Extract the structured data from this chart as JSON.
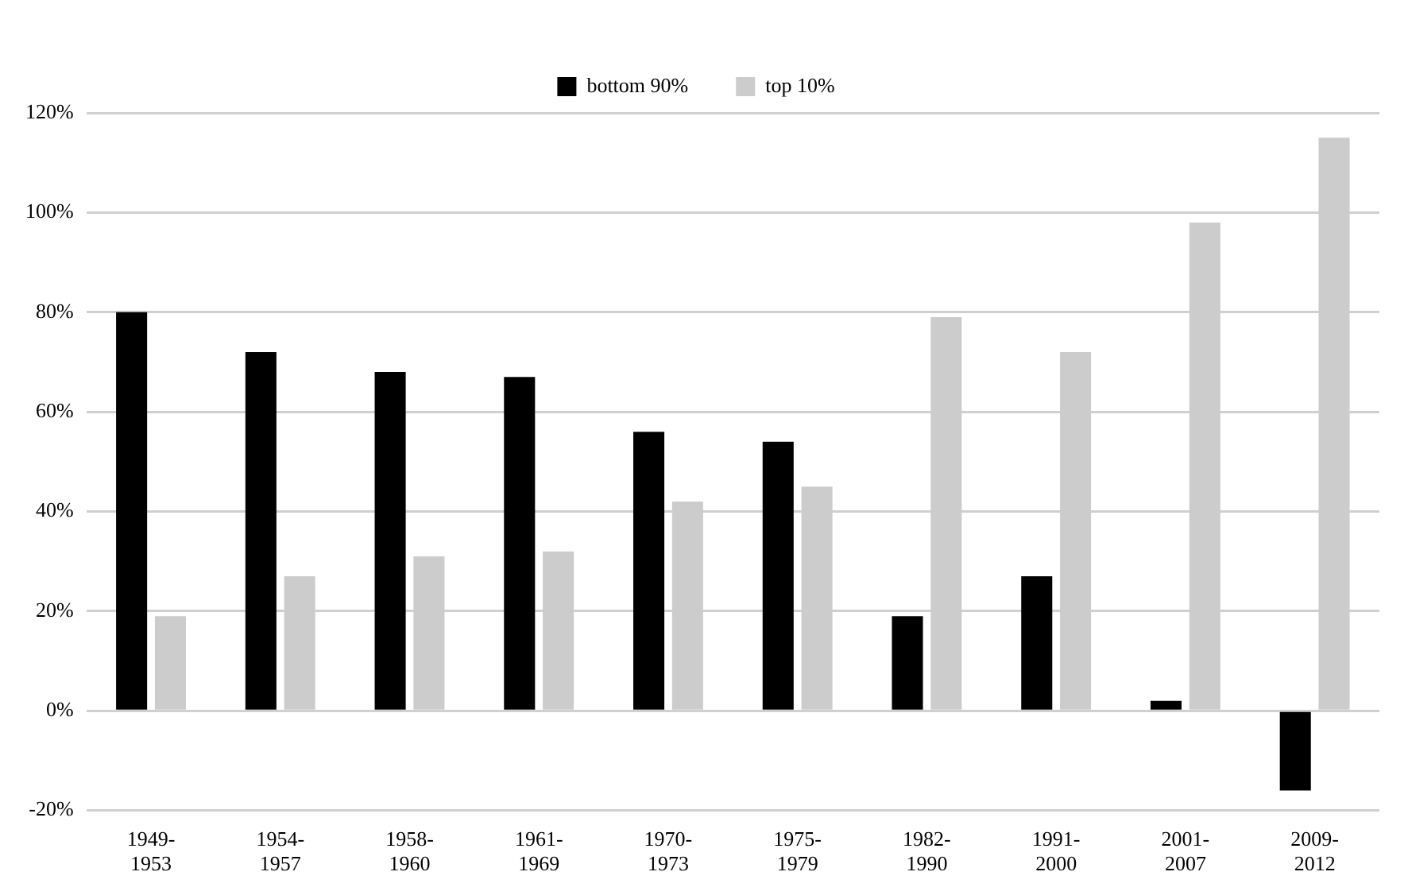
{
  "chart_data": {
    "type": "bar",
    "categories": [
      "1949-\n1953",
      "1954-\n1957",
      "1958-\n1960",
      "1961-\n1969",
      "1970-\n1973",
      "1975-\n1979",
      "1982-\n1990",
      "1991-\n2000",
      "2001-\n2007",
      "2009-\n2012"
    ],
    "series": [
      {
        "name": "bottom 90%",
        "color": "#000000",
        "values": [
          80,
          72,
          68,
          67,
          56,
          54,
          19,
          27,
          2,
          -16
        ]
      },
      {
        "name": "top 10%",
        "color": "#cccccc",
        "values": [
          19,
          27,
          31,
          32,
          42,
          45,
          79,
          72,
          98,
          115
        ]
      }
    ],
    "ylim": [
      -20,
      120
    ],
    "yticks": [
      {
        "value": -20,
        "label": "-20%"
      },
      {
        "value": 0,
        "label": "0%"
      },
      {
        "value": 20,
        "label": "20%"
      },
      {
        "value": 40,
        "label": "40%"
      },
      {
        "value": 60,
        "label": "60%"
      },
      {
        "value": 80,
        "label": "80%"
      },
      {
        "value": 100,
        "label": "100%"
      },
      {
        "value": 120,
        "label": "120%"
      }
    ],
    "grid": "y",
    "legend": "top"
  }
}
